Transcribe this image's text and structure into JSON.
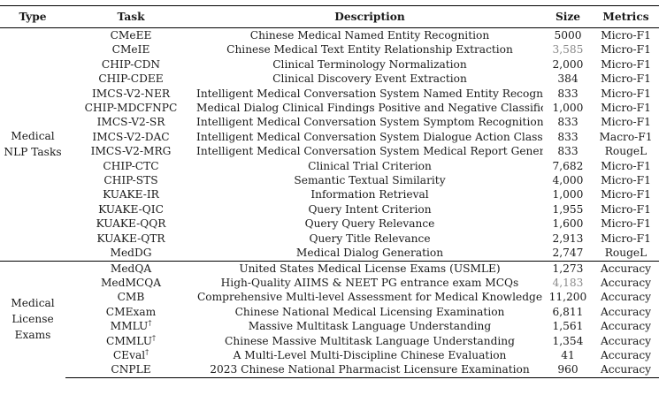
{
  "headers": {
    "type": "Type",
    "task": "Task",
    "description": "Description",
    "size": "Size",
    "metrics": "Metrics"
  },
  "groups": [
    {
      "label_line1": "Medical",
      "label_line2": "NLP Tasks",
      "rows": [
        {
          "task": "CMeEE",
          "dagger": false,
          "description": "Chinese Medical Named Entity Recognition",
          "size": "5000",
          "size_gray": false,
          "metric": "Micro-F1"
        },
        {
          "task": "CMeIE",
          "dagger": false,
          "description": "Chinese Medical Text Entity Relationship Extraction",
          "size": "3,585",
          "size_gray": true,
          "metric": "Micro-F1"
        },
        {
          "task": "CHIP-CDN",
          "dagger": false,
          "description": "Clinical Terminology Normalization",
          "size": "2,000",
          "size_gray": false,
          "metric": "Micro-F1"
        },
        {
          "task": "CHIP-CDEE",
          "dagger": false,
          "description": "Clinical Discovery Event Extraction",
          "size": "384",
          "size_gray": false,
          "metric": "Micro-F1"
        },
        {
          "task": "IMCS-V2-NER",
          "dagger": false,
          "description": "Intelligent Medical Conversation System Named Entity Recognition",
          "size": "833",
          "size_gray": false,
          "metric": "Micro-F1"
        },
        {
          "task": "CHIP-MDCFNPC",
          "dagger": false,
          "description": "Medical Dialog Clinical Findings Positive and Negative Classification",
          "size": "1,000",
          "size_gray": false,
          "metric": "Micro-F1"
        },
        {
          "task": "IMCS-V2-SR",
          "dagger": false,
          "description": "Intelligent Medical Conversation System Symptom Recognition",
          "size": "833",
          "size_gray": false,
          "metric": "Micro-F1"
        },
        {
          "task": "IMCS-V2-DAC",
          "dagger": false,
          "description": "Intelligent Medical Conversation System Dialogue Action Classification",
          "size": "833",
          "size_gray": false,
          "metric": "Macro-F1"
        },
        {
          "task": "IMCS-V2-MRG",
          "dagger": false,
          "description": "Intelligent Medical Conversation System Medical Report Generation",
          "size": "833",
          "size_gray": false,
          "metric": "RougeL"
        },
        {
          "task": "CHIP-CTC",
          "dagger": false,
          "description": "Clinical Trial Criterion",
          "size": "7,682",
          "size_gray": false,
          "metric": "Micro-F1"
        },
        {
          "task": "CHIP-STS",
          "dagger": false,
          "description": "Semantic Textual Similarity",
          "size": "4,000",
          "size_gray": false,
          "metric": "Micro-F1"
        },
        {
          "task": "KUAKE-IR",
          "dagger": false,
          "description": "Information Retrieval",
          "size": "1,000",
          "size_gray": false,
          "metric": "Micro-F1"
        },
        {
          "task": "KUAKE-QIC",
          "dagger": false,
          "description": "Query Intent Criterion",
          "size": "1,955",
          "size_gray": false,
          "metric": "Micro-F1"
        },
        {
          "task": "KUAKE-QQR",
          "dagger": false,
          "description": "Query Query Relevance",
          "size": "1,600",
          "size_gray": false,
          "metric": "Micro-F1"
        },
        {
          "task": "KUAKE-QTR",
          "dagger": false,
          "description": "Query Title Relevance",
          "size": "2,913",
          "size_gray": false,
          "metric": "Micro-F1"
        },
        {
          "task": "MedDG",
          "dagger": false,
          "description": "Medical Dialog Generation",
          "size": "2,747",
          "size_gray": false,
          "metric": "RougeL"
        }
      ]
    },
    {
      "label_line1": "Medical",
      "label_line2": "License Exams",
      "rows": [
        {
          "task": "MedQA",
          "dagger": false,
          "description": "United States Medical License Exams (USMLE)",
          "size": "1,273",
          "size_gray": false,
          "metric": "Accuracy"
        },
        {
          "task": "MedMCQA",
          "dagger": false,
          "description": "High-Quality AIIMS & NEET PG entrance exam MCQs",
          "size": "4,183",
          "size_gray": true,
          "metric": "Accuracy"
        },
        {
          "task": "CMB",
          "dagger": false,
          "description": "Comprehensive Multi-level Assessment for Medical Knowledge",
          "size": "11,200",
          "size_gray": false,
          "metric": "Accuracy"
        },
        {
          "task": "CMExam",
          "dagger": false,
          "description": "Chinese National Medical Licensing Examination",
          "size": "6,811",
          "size_gray": false,
          "metric": "Accuracy"
        },
        {
          "task": "MMLU",
          "dagger": true,
          "description": "Massive Multitask Language Understanding",
          "size": "1,561",
          "size_gray": false,
          "metric": "Accuracy"
        },
        {
          "task": "CMMLU",
          "dagger": true,
          "description": "Chinese Massive Multitask Language Understanding",
          "size": "1,354",
          "size_gray": false,
          "metric": "Accuracy"
        },
        {
          "task": "CEval",
          "dagger": true,
          "description": "A Multi-Level Multi-Discipline Chinese Evaluation",
          "size": "41",
          "size_gray": false,
          "metric": "Accuracy"
        },
        {
          "task": "CNPLE",
          "dagger": false,
          "description": "2023 Chinese National Pharmacist Licensure Examination",
          "size": "960",
          "size_gray": false,
          "metric": "Accuracy"
        }
      ]
    }
  ],
  "dagger_symbol": "†"
}
